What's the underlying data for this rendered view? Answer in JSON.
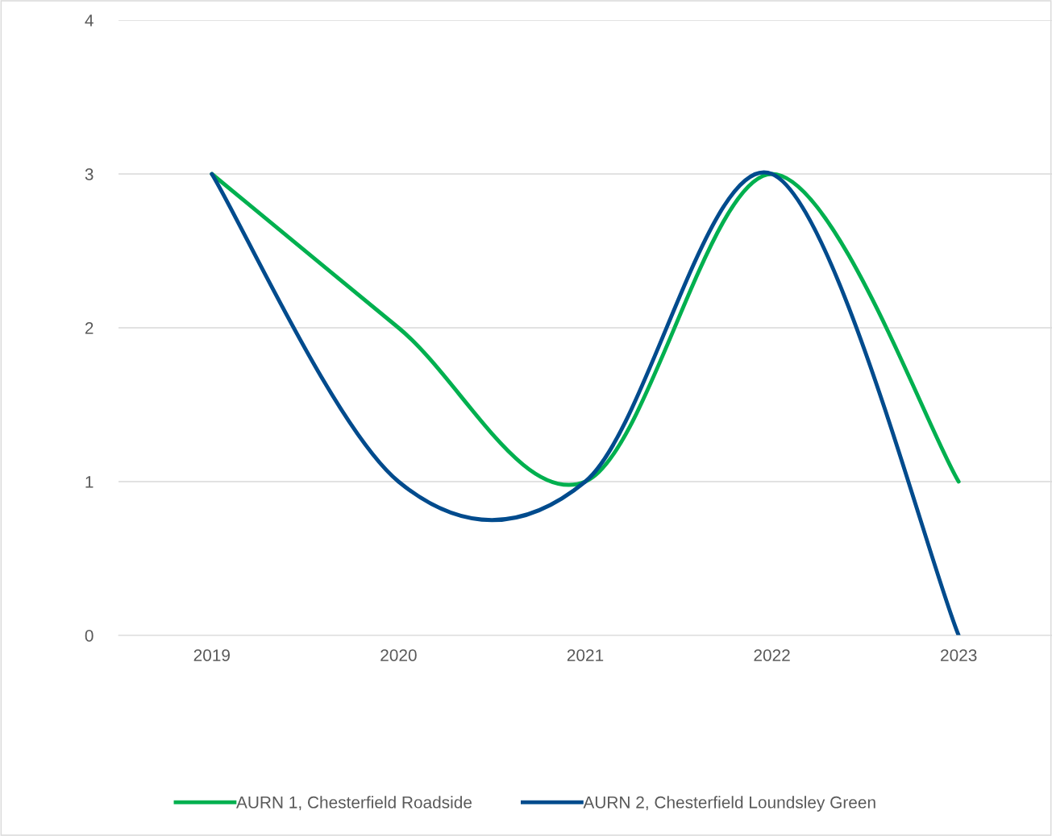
{
  "chart_data": {
    "type": "line",
    "categories": [
      "2019",
      "2020",
      "2021",
      "2022",
      "2023"
    ],
    "series": [
      {
        "name": "AURN 1, Chesterfield Roadside",
        "color": "#00b04f",
        "values": [
          3,
          2,
          1,
          3,
          1
        ]
      },
      {
        "name": "AURN 2, Chesterfield Loundsley Green",
        "color": "#004b8d",
        "values": [
          3,
          1,
          1,
          3,
          0
        ]
      }
    ],
    "ylim": [
      0,
      4
    ],
    "yticks": [
      0,
      1,
      2,
      3,
      4
    ],
    "grid": "y",
    "legend": "bottom",
    "marker": "none",
    "line_style": "solid"
  }
}
